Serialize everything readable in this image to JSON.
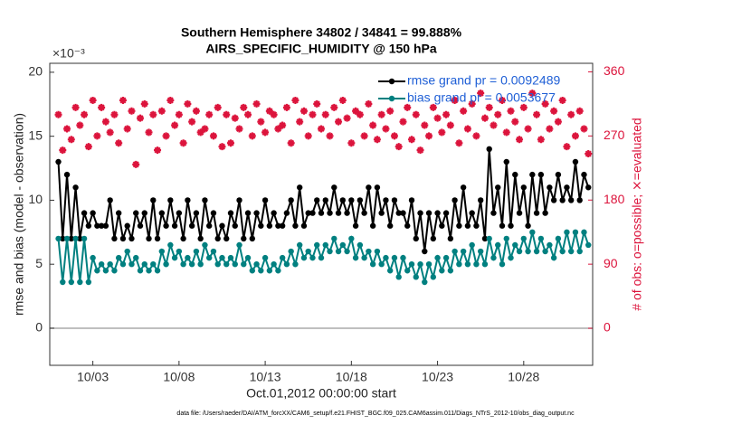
{
  "chart_data": {
    "type": "line",
    "title": "Southern Hemisphere 34802 / 34841 = 99.888%",
    "subtitle": "AIRS_SPECIFIC_HUMIDITY @ 150 hPa",
    "y_multiplier": "×10⁻³",
    "ylabel": "rmse and bias (model - observation)",
    "y2label": "# of obs: o=possible; ⨯=evaluated",
    "xlabel": "Oct.01,2012 00:00:00 start",
    "footnote": "data file: /Users/raeder/DAI/ATM_forcXX/CAM6_setup/f.e21.FHIST_BGC.f09_025.CAM6assim.011/Diags_NTrS_2012-10/obs_diag_output.nc",
    "legend": "upper right",
    "xlim": [
      -0.5,
      31
    ],
    "xticks": [
      {
        "value": 2,
        "label": "10/03"
      },
      {
        "value": 7,
        "label": "10/08"
      },
      {
        "value": 12,
        "label": "10/13"
      },
      {
        "value": 17,
        "label": "10/18"
      },
      {
        "value": 22,
        "label": "10/23"
      },
      {
        "value": 27,
        "label": "10/28"
      }
    ],
    "ylim": [
      -2.9,
      20.7
    ],
    "yticks": [
      0,
      5,
      10,
      15,
      20
    ],
    "y2lim": [
      -52,
      372
    ],
    "y2ticks": [
      0,
      90,
      180,
      270,
      360
    ],
    "x": [
      0,
      0.25,
      0.5,
      0.75,
      1,
      1.25,
      1.5,
      1.75,
      2,
      2.25,
      2.5,
      2.75,
      3,
      3.25,
      3.5,
      3.75,
      4,
      4.25,
      4.5,
      4.75,
      5,
      5.25,
      5.5,
      5.75,
      6,
      6.25,
      6.5,
      6.75,
      7,
      7.25,
      7.5,
      7.75,
      8,
      8.25,
      8.5,
      8.75,
      9,
      9.25,
      9.5,
      9.75,
      10,
      10.25,
      10.5,
      10.75,
      11,
      11.25,
      11.5,
      11.75,
      12,
      12.25,
      12.5,
      12.75,
      13,
      13.25,
      13.5,
      13.75,
      14,
      14.25,
      14.5,
      14.75,
      15,
      15.25,
      15.5,
      15.75,
      16,
      16.25,
      16.5,
      16.75,
      17,
      17.25,
      17.5,
      17.75,
      18,
      18.25,
      18.5,
      18.75,
      19,
      19.25,
      19.5,
      19.75,
      20,
      20.25,
      20.5,
      20.75,
      21,
      21.25,
      21.5,
      21.75,
      22,
      22.25,
      22.5,
      22.75,
      23,
      23.25,
      23.5,
      23.75,
      24,
      24.25,
      24.5,
      24.75,
      25,
      25.25,
      25.5,
      25.75,
      26,
      26.25,
      26.5,
      26.75,
      27,
      27.25,
      27.5,
      27.75,
      28,
      28.25,
      28.5,
      28.75,
      29,
      29.25,
      29.5,
      29.75,
      30,
      30.25,
      30.5,
      30.75
    ],
    "series": [
      {
        "name": "rmse grand pr = 0.0092489",
        "color": "#000000",
        "values": [
          13,
          7,
          12,
          7,
          11,
          7,
          9,
          8,
          9,
          8,
          8,
          8,
          10,
          7,
          9,
          7,
          8,
          7,
          9,
          8,
          9,
          7,
          10,
          7,
          9,
          8,
          10,
          8,
          9,
          7,
          10,
          8,
          9,
          7,
          10,
          8,
          9,
          7,
          8,
          7,
          9,
          8,
          10,
          7,
          9,
          7,
          9,
          8,
          10,
          8,
          9,
          8,
          8,
          9,
          10,
          8,
          11,
          8,
          9,
          9,
          10,
          9,
          10,
          9,
          11,
          9,
          10,
          9,
          10,
          8,
          10,
          9,
          11,
          8,
          11,
          9,
          10,
          8,
          10,
          9,
          9,
          8,
          10,
          7,
          9,
          6,
          9,
          7,
          9,
          8,
          9,
          7,
          10,
          8,
          11,
          8,
          9,
          8,
          10,
          7,
          14,
          9,
          11,
          8,
          13,
          8,
          12,
          9,
          11,
          8,
          12,
          9,
          12,
          9,
          11,
          10,
          12,
          10,
          11,
          10,
          13,
          10,
          12,
          11
        ]
      },
      {
        "name": "bias grand pr = 0.0053677",
        "color": "#008080",
        "values": [
          7,
          3.6,
          7,
          3.6,
          7,
          3.6,
          7,
          3.6,
          5.5,
          4.5,
          5,
          4.5,
          5,
          4.5,
          5.5,
          5,
          6,
          5,
          5.5,
          4.5,
          5,
          4.5,
          5,
          4.5,
          6,
          5,
          6.5,
          5.5,
          6,
          5,
          5.5,
          5,
          6,
          5,
          6.5,
          5.5,
          6,
          5,
          5.5,
          5,
          5.5,
          5,
          6.5,
          5,
          5.5,
          4.5,
          5,
          4.5,
          5.5,
          4.5,
          5,
          4.5,
          5.5,
          5,
          6,
          5,
          6.5,
          5.5,
          6,
          5.5,
          6.5,
          5.5,
          6.5,
          6,
          7,
          6,
          6.5,
          6,
          7,
          5.5,
          6.5,
          5.5,
          6,
          5,
          6,
          5,
          5.5,
          4.5,
          5.5,
          4,
          5.5,
          4.5,
          5,
          4,
          5,
          3.6,
          5,
          4,
          5.5,
          4.5,
          5.5,
          4.5,
          6,
          5,
          6,
          5,
          6.5,
          5,
          6,
          5,
          7,
          5.5,
          6.5,
          5,
          7,
          5.5,
          6.5,
          6,
          7,
          6,
          7.5,
          6,
          7,
          6,
          6.5,
          5.5,
          7,
          6,
          7.5,
          6,
          7.5,
          6,
          7.5,
          6.5
        ]
      },
      {
        "color": "#dc143c",
        "axis": "y2",
        "values": [
          300,
          250,
          280,
          265,
          310,
          285,
          300,
          255,
          320,
          270,
          310,
          290,
          275,
          300,
          260,
          320,
          280,
          305,
          230,
          295,
          315,
          275,
          300,
          250,
          305,
          270,
          320,
          285,
          300,
          260,
          315,
          290,
          305,
          275,
          280,
          300,
          270,
          310,
          255,
          300,
          260,
          295,
          280,
          310,
          300,
          270,
          315,
          290,
          275,
          305,
          300,
          280,
          285,
          310,
          260,
          320,
          290,
          305,
          270,
          300,
          315,
          280,
          300,
          270,
          310,
          290,
          320,
          295,
          260,
          305,
          300,
          270,
          315,
          285,
          265,
          300,
          280,
          305,
          270,
          255,
          290,
          310,
          265,
          300,
          250,
          285,
          270,
          310,
          295,
          275,
          300,
          285,
          320,
          260,
          305,
          280,
          315,
          270,
          330,
          295,
          310,
          285,
          300,
          320,
          275,
          305,
          290,
          265,
          310,
          280,
          330,
          300,
          265,
          315,
          280,
          305,
          290,
          320,
          255,
          300,
          270,
          305,
          280,
          245
        ]
      }
    ]
  }
}
